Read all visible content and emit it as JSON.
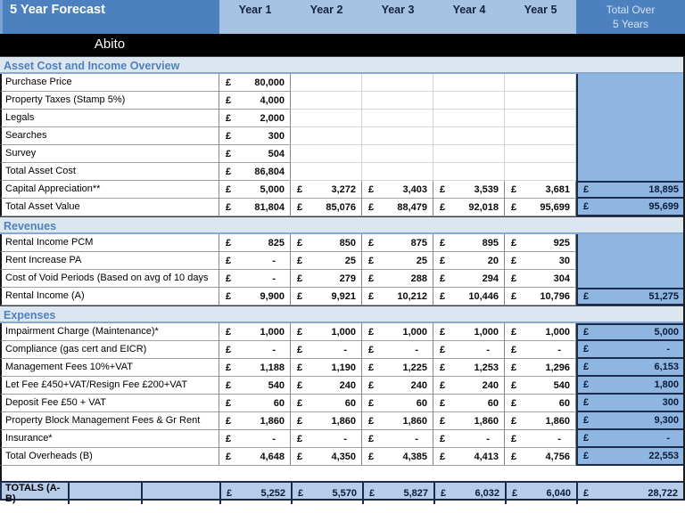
{
  "header": {
    "title": "5 Year Forecast",
    "year_columns": [
      "Year 1",
      "Year 2",
      "Year 3",
      "Year 4",
      "Year 5"
    ],
    "total_column": {
      "line1": "Total Over",
      "line2": "5 Years"
    }
  },
  "property_name": "Abito",
  "currency_symbol": "£",
  "colors": {
    "header_dark_blue": "#4C80BF",
    "header_light_blue": "#A6C3E1",
    "section_header_bg": "#DCE6F1",
    "section_header_text": "#4F81BD",
    "total_column_fill": "#8FB5E1",
    "totals_row_fill": "#B7CCE9",
    "dark_border_navy": "#1C2B4A"
  },
  "sections": [
    {
      "title": "Asset Cost and Income Overview",
      "rows": [
        {
          "label": "Purchase Price",
          "values": [
            "80,000",
            null,
            null,
            null,
            null
          ],
          "total": null,
          "total_style": "fill"
        },
        {
          "label": "Property Taxes (Stamp 5%)",
          "values": [
            "4,000",
            null,
            null,
            null,
            null
          ],
          "total": null,
          "total_style": "fill"
        },
        {
          "label": "Legals",
          "values": [
            "2,000",
            null,
            null,
            null,
            null
          ],
          "total": null,
          "total_style": "fill"
        },
        {
          "label": "Searches",
          "values": [
            "300",
            null,
            null,
            null,
            null
          ],
          "total": null,
          "total_style": "fill"
        },
        {
          "label": "Survey",
          "values": [
            "504",
            null,
            null,
            null,
            null
          ],
          "total": null,
          "total_style": "fill"
        },
        {
          "label": "Total Asset Cost",
          "values": [
            "86,804",
            null,
            null,
            null,
            null
          ],
          "total": null,
          "total_style": "fill"
        },
        {
          "label": "Capital Appreciation**",
          "values": [
            "5,000",
            "3,272",
            "3,403",
            "3,539",
            "3,681"
          ],
          "total": "18,895",
          "total_style": "box"
        },
        {
          "label": "Total Asset Value",
          "values": [
            "81,804",
            "85,076",
            "88,479",
            "92,018",
            "95,699"
          ],
          "total": "95,699",
          "total_style": "box"
        }
      ]
    },
    {
      "title": "Revenues",
      "rows": [
        {
          "label": "Rental Income PCM",
          "values": [
            "825",
            "850",
            "875",
            "895",
            "925"
          ],
          "total": null,
          "total_style": "fill"
        },
        {
          "label": "Rent Increase PA",
          "values": [
            "-",
            "25",
            "25",
            "20",
            "30"
          ],
          "total": null,
          "total_style": "fill"
        },
        {
          "label": "Cost of Void Periods (Based on avg of 10 days",
          "values": [
            "-",
            "279",
            "288",
            "294",
            "304"
          ],
          "total": null,
          "total_style": "fill"
        },
        {
          "label": "Rental Income (A)",
          "values": [
            "9,900",
            "9,921",
            "10,212",
            "10,446",
            "10,796"
          ],
          "total": "51,275",
          "total_style": "box"
        }
      ]
    },
    {
      "title": "Expenses",
      "rows": [
        {
          "label": "Impairment Charge (Maintenance)*",
          "values": [
            "1,000",
            "1,000",
            "1,000",
            "1,000",
            "1,000"
          ],
          "total": "5,000",
          "total_style": "box"
        },
        {
          "label": "Compliance (gas cert and EICR)",
          "values": [
            "-",
            "-",
            "-",
            "-",
            "-"
          ],
          "total": "-",
          "total_style": "box"
        },
        {
          "label": "Management Fees 10%+VAT",
          "values": [
            "1,188",
            "1,190",
            "1,225",
            "1,253",
            "1,296"
          ],
          "total": "6,153",
          "total_style": "box"
        },
        {
          "label": "Let Fee £450+VAT/Resign Fee £200+VAT",
          "values": [
            "540",
            "240",
            "240",
            "240",
            "540"
          ],
          "total": "1,800",
          "total_style": "box"
        },
        {
          "label": "Deposit Fee £50 + VAT",
          "values": [
            "60",
            "60",
            "60",
            "60",
            "60"
          ],
          "total": "300",
          "total_style": "box"
        },
        {
          "label": "Property Block Management Fees & Gr Rent",
          "values": [
            "1,860",
            "1,860",
            "1,860",
            "1,860",
            "1,860"
          ],
          "total": "9,300",
          "total_style": "box"
        },
        {
          "label": "Insurance*",
          "values": [
            "-",
            "-",
            "-",
            "-",
            "-"
          ],
          "total": "-",
          "total_style": "box"
        },
        {
          "label": "Total Overheads (B)",
          "values": [
            "4,648",
            "4,350",
            "4,385",
            "4,413",
            "4,756"
          ],
          "total": "22,553",
          "total_style": "box"
        }
      ]
    }
  ],
  "totals_row": {
    "label": "TOTALS (A-B)",
    "values": [
      "5,252",
      "5,570",
      "5,827",
      "6,032",
      "6,040"
    ],
    "total": "28,722"
  }
}
